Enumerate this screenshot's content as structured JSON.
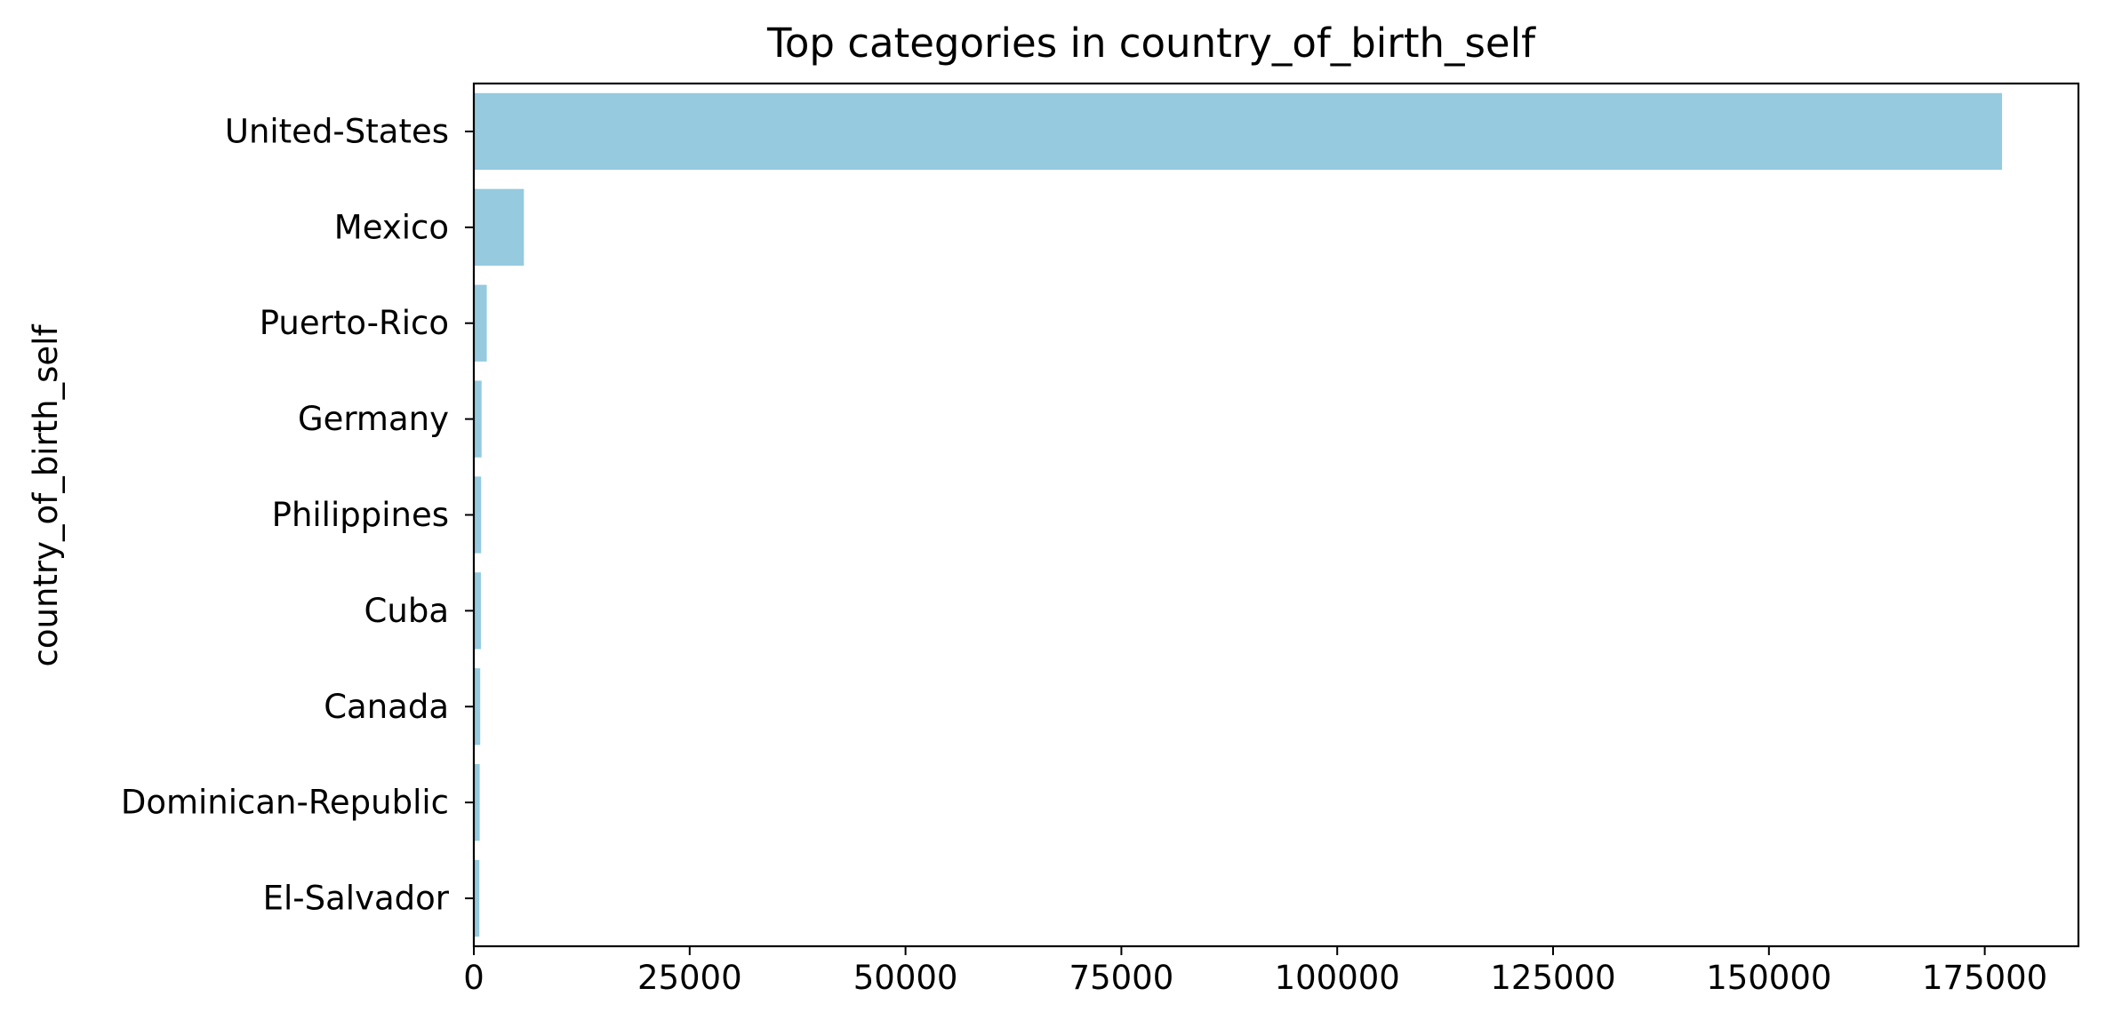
{
  "chart_data": {
    "type": "bar",
    "orientation": "horizontal",
    "title": "Top categories in country_of_birth_self",
    "xlabel": "",
    "ylabel": "country_of_birth_self",
    "categories": [
      "United-States",
      "Mexico",
      "Puerto-Rico",
      "Germany",
      "Philippines",
      "Cuba",
      "Canada",
      "Dominican-Republic",
      "El-Salvador"
    ],
    "values": [
      177000,
      5800,
      1500,
      900,
      850,
      820,
      740,
      680,
      640
    ],
    "xlim": [
      0,
      185850
    ],
    "xticks": [
      0,
      25000,
      50000,
      75000,
      100000,
      125000,
      150000,
      175000
    ],
    "grid": false,
    "legend": "none",
    "bar_color": "#95cadf"
  }
}
